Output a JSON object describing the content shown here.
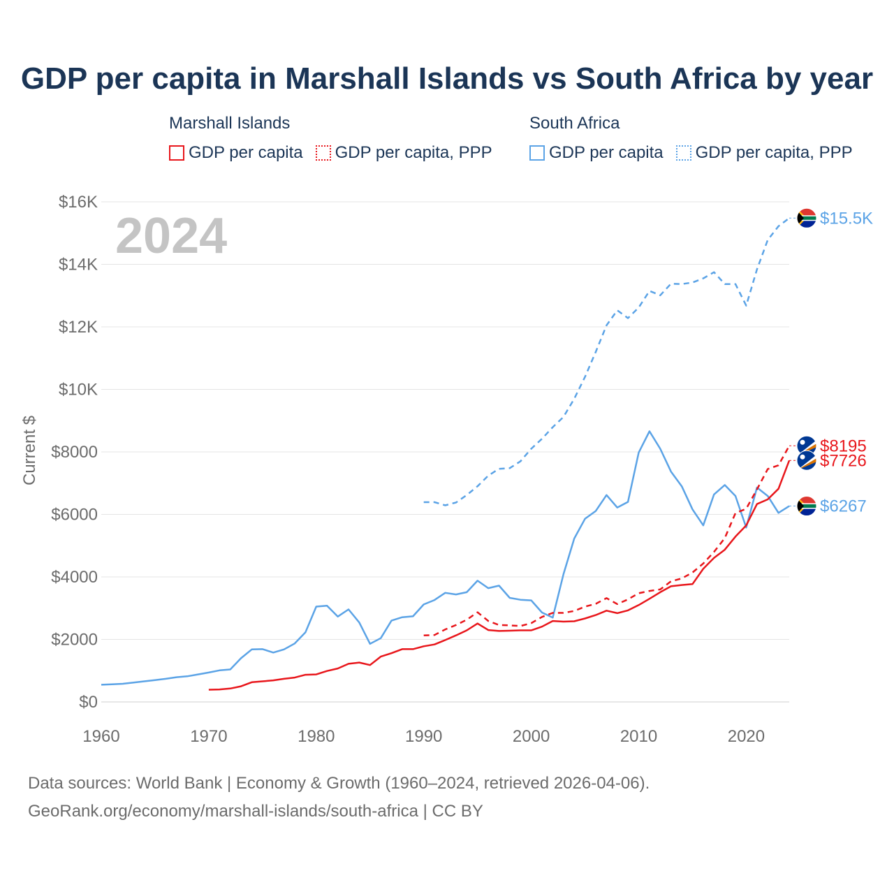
{
  "title": "GDP per capita in Marshall Islands vs South Africa by year",
  "legend": {
    "groups": [
      {
        "name": "Marshall Islands",
        "color": "#e8161b",
        "items": [
          {
            "label": "GDP per capita",
            "style": "solid"
          },
          {
            "label": "GDP per capita, PPP",
            "style": "dotted"
          }
        ]
      },
      {
        "name": "South Africa",
        "color": "#5ba3e6",
        "items": [
          {
            "label": "GDP per capita",
            "style": "solid"
          },
          {
            "label": "GDP per capita, PPP",
            "style": "dotted"
          }
        ]
      }
    ]
  },
  "year_label": "2024",
  "footer": {
    "line1": "Data sources: World Bank | Economy & Growth (1960–2024, retrieved 2026-04-06).",
    "line2": "GeoRank.org/economy/marshall-islands/south-africa | CC BY"
  },
  "chart_data": {
    "type": "line",
    "title": "GDP per capita in Marshall Islands vs South Africa by year",
    "xlabel": "",
    "ylabel": "Current $",
    "xlim": [
      1960,
      2024
    ],
    "ylim": [
      0,
      16000
    ],
    "x_ticks": [
      1960,
      1970,
      1980,
      1990,
      2000,
      2010,
      2020
    ],
    "x_tick_labels": [
      "1960",
      "1970",
      "1980",
      "1990",
      "2000",
      "2010",
      "2020"
    ],
    "y_ticks": [
      0,
      2000,
      4000,
      6000,
      8000,
      10000,
      12000,
      14000,
      16000
    ],
    "y_tick_labels": [
      "$0",
      "$2000",
      "$4000",
      "$6000",
      "$8000",
      "$10K",
      "$12K",
      "$14K",
      "$16K"
    ],
    "grid": true,
    "series": [
      {
        "name": "South Africa GDP per capita, PPP",
        "country": "South Africa",
        "color": "#5ba3e6",
        "dash": "dashed",
        "end_label": "$15.5K",
        "x": [
          1990,
          1991,
          1992,
          1993,
          1994,
          1995,
          1996,
          1997,
          1998,
          1999,
          2000,
          2001,
          2002,
          2003,
          2004,
          2005,
          2006,
          2007,
          2008,
          2009,
          2010,
          2011,
          2012,
          2013,
          2014,
          2015,
          2016,
          2017,
          2018,
          2019,
          2020,
          2021,
          2022,
          2023,
          2024
        ],
        "values": [
          6390,
          6390,
          6290,
          6380,
          6620,
          6900,
          7240,
          7460,
          7480,
          7700,
          8100,
          8420,
          8790,
          9120,
          9700,
          10400,
          11200,
          12050,
          12530,
          12280,
          12620,
          13150,
          13010,
          13380,
          13370,
          13420,
          13550,
          13750,
          13370,
          13370,
          12680,
          13840,
          14780,
          15220,
          15480
        ]
      },
      {
        "name": "South Africa GDP per capita",
        "country": "South Africa",
        "color": "#5ba3e6",
        "dash": "solid",
        "end_label": "$6267",
        "x": [
          1960,
          1961,
          1962,
          1963,
          1964,
          1965,
          1966,
          1967,
          1968,
          1969,
          1970,
          1971,
          1972,
          1973,
          1974,
          1975,
          1976,
          1977,
          1978,
          1979,
          1980,
          1981,
          1982,
          1983,
          1984,
          1985,
          1986,
          1987,
          1988,
          1989,
          1990,
          1991,
          1992,
          1993,
          1994,
          1995,
          1996,
          1997,
          1998,
          1999,
          2000,
          2001,
          2002,
          2003,
          2004,
          2005,
          2006,
          2007,
          2008,
          2009,
          2010,
          2011,
          2012,
          2013,
          2014,
          2015,
          2016,
          2017,
          2018,
          2019,
          2020,
          2021,
          2022,
          2023,
          2024
        ],
        "values": [
          550,
          565,
          580,
          620,
          660,
          700,
          740,
          790,
          820,
          880,
          940,
          1010,
          1040,
          1400,
          1680,
          1690,
          1580,
          1680,
          1870,
          2230,
          3050,
          3080,
          2730,
          2960,
          2540,
          1860,
          2040,
          2600,
          2710,
          2740,
          3120,
          3260,
          3490,
          3440,
          3510,
          3880,
          3640,
          3720,
          3330,
          3270,
          3250,
          2860,
          2700,
          4090,
          5230,
          5860,
          6110,
          6620,
          6220,
          6400,
          7980,
          8660,
          8100,
          7370,
          6900,
          6160,
          5650,
          6640,
          6940,
          6590,
          5580,
          6860,
          6590,
          6050,
          6267
        ]
      },
      {
        "name": "Marshall Islands GDP per capita, PPP",
        "country": "Marshall Islands",
        "color": "#e8161b",
        "dash": "dashed",
        "end_label": "$8195",
        "x": [
          1990,
          1991,
          1992,
          1993,
          1994,
          1995,
          1996,
          1997,
          1998,
          1999,
          2000,
          2001,
          2002,
          2003,
          2004,
          2005,
          2006,
          2007,
          2008,
          2009,
          2010,
          2011,
          2012,
          2013,
          2014,
          2015,
          2016,
          2017,
          2018,
          2019,
          2020,
          2021,
          2022,
          2023,
          2024
        ],
        "values": [
          2130,
          2140,
          2320,
          2460,
          2630,
          2870,
          2590,
          2460,
          2450,
          2430,
          2520,
          2720,
          2850,
          2850,
          2910,
          3050,
          3140,
          3320,
          3130,
          3280,
          3480,
          3550,
          3600,
          3860,
          3950,
          4140,
          4430,
          4800,
          5240,
          6040,
          6180,
          6800,
          7450,
          7570,
          8195
        ]
      },
      {
        "name": "Marshall Islands GDP per capita",
        "country": "Marshall Islands",
        "color": "#e8161b",
        "dash": "solid",
        "end_label": "$7726",
        "x": [
          1970,
          1971,
          1972,
          1973,
          1974,
          1975,
          1976,
          1977,
          1978,
          1979,
          1980,
          1981,
          1982,
          1983,
          1984,
          1985,
          1986,
          1987,
          1988,
          1989,
          1990,
          1991,
          1992,
          1993,
          1994,
          1995,
          1996,
          1997,
          1998,
          1999,
          2000,
          2001,
          2002,
          2003,
          2004,
          2005,
          2006,
          2007,
          2008,
          2009,
          2010,
          2011,
          2012,
          2013,
          2014,
          2015,
          2016,
          2017,
          2018,
          2019,
          2020,
          2021,
          2022,
          2023,
          2024
        ],
        "values": [
          390,
          400,
          430,
          500,
          630,
          660,
          690,
          740,
          780,
          870,
          880,
          990,
          1070,
          1220,
          1260,
          1180,
          1450,
          1560,
          1690,
          1690,
          1780,
          1840,
          1980,
          2130,
          2290,
          2510,
          2300,
          2270,
          2280,
          2290,
          2290,
          2410,
          2590,
          2570,
          2580,
          2670,
          2780,
          2920,
          2840,
          2930,
          3100,
          3300,
          3510,
          3700,
          3740,
          3770,
          4260,
          4610,
          4870,
          5290,
          5650,
          6330,
          6480,
          6820,
          7726
        ]
      }
    ]
  }
}
